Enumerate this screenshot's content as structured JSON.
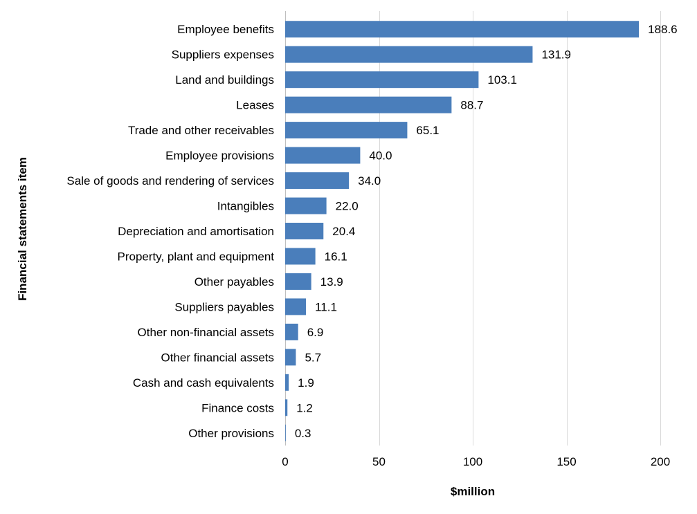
{
  "chart_data": {
    "type": "bar",
    "orientation": "horizontal",
    "xlabel": "$million",
    "ylabel": "Financial statements item",
    "xlim": [
      0,
      200
    ],
    "xticks": [
      0,
      50,
      100,
      150,
      200
    ],
    "grid": true,
    "bar_color": "#4a7ebb",
    "categories": [
      "Employee benefits",
      "Suppliers expenses",
      "Land and buildings",
      "Leases",
      "Trade and other receivables",
      "Employee provisions",
      "Sale of goods and rendering of services",
      "Intangibles",
      "Depreciation and amortisation",
      "Property, plant and equipment",
      "Other payables",
      "Suppliers payables",
      "Other non-financial assets",
      "Other financial assets",
      "Cash and cash equivalents",
      "Finance costs",
      "Other provisions"
    ],
    "values": [
      188.6,
      131.9,
      103.1,
      88.7,
      65.1,
      40.0,
      34.0,
      22.0,
      20.4,
      16.1,
      13.9,
      11.1,
      6.9,
      5.7,
      1.9,
      1.2,
      0.3
    ],
    "data_labels": [
      "188.6",
      "131.9",
      "103.1",
      "88.7",
      "65.1",
      "40.0",
      "34.0",
      "22.0",
      "20.4",
      "16.1",
      "13.9",
      "11.1",
      "6.9",
      "5.7",
      "1.9",
      "1.2",
      "0.3"
    ]
  }
}
